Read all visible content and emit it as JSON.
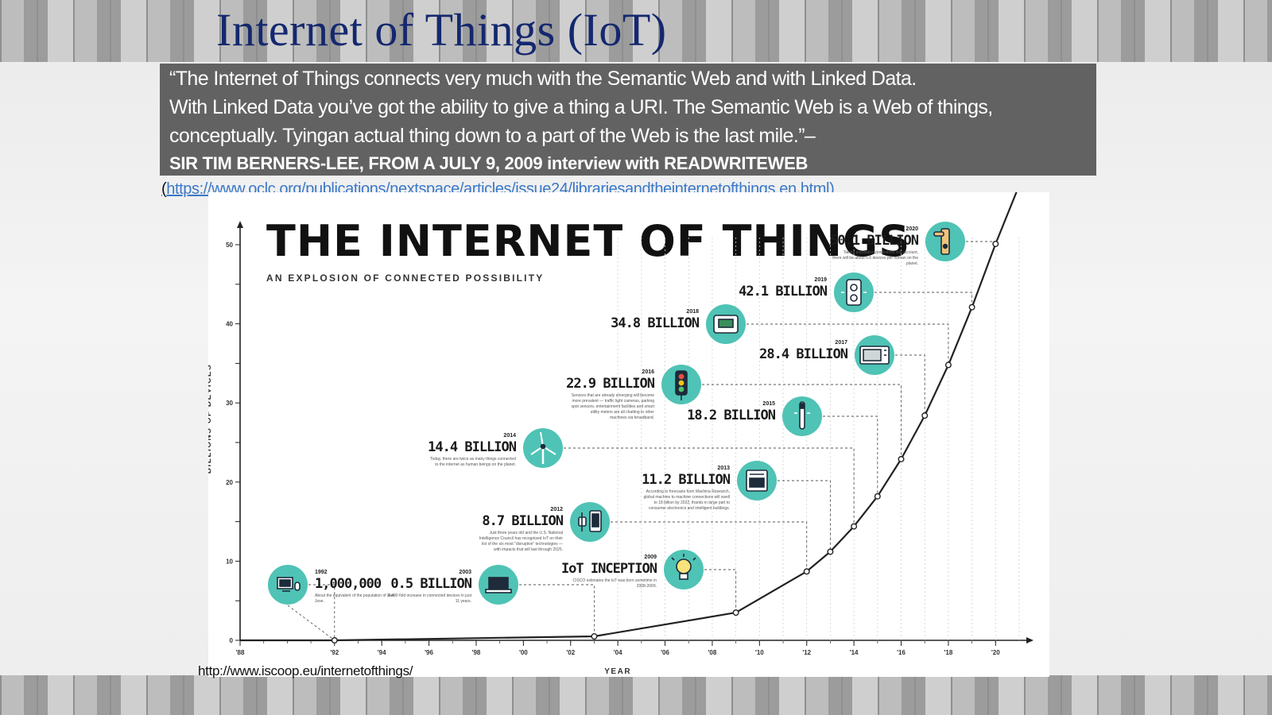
{
  "slide": {
    "title": "Internet of Things (IoT)",
    "quote_lines": [
      "“The Internet of Things connects very much with the Semantic Web and with Linked Data.",
      "With Linked Data you’ve got the ability to give a thing a URI. The Semantic Web is a Web  of things,",
      "conceptually. Tyingan actual thing down to a part of the Web is the last  mile.”–"
    ],
    "quote_attribution": "SIR TIM BERNERS-LEE, FROM A JULY 9, 2009 interview with READWRITEWEB",
    "source_open": "(",
    "source_url": "https://www.oclc.org/publications/nextspace/articles/issue24/librariesandtheinternetofthings.en.html",
    "source_close": ")",
    "credit_url": "http://www.iscoop.eu/internetofthings/"
  },
  "chart_data": {
    "type": "line",
    "title": "THE INTERNET OF THINGS",
    "subtitle": "AN EXPLOSION OF CONNECTED POSSIBILITY",
    "xlabel": "YEAR",
    "ylabel": "BILLIONS OF DEVICES",
    "xlim": [
      1988,
      2021
    ],
    "ylim": [
      0,
      50
    ],
    "x_ticks": [
      "'88",
      "'92",
      "'94",
      "'96",
      "'98",
      "'00",
      "'02",
      "'04",
      "'06",
      "'08",
      "'10",
      "'12",
      "'14",
      "'16",
      "'18",
      "'20"
    ],
    "x_tick_values": [
      1988,
      1992,
      1994,
      1996,
      1998,
      2000,
      2002,
      2004,
      2006,
      2008,
      2010,
      2012,
      2014,
      2016,
      2018,
      2020
    ],
    "y_ticks": [
      0,
      10,
      20,
      30,
      40,
      50
    ],
    "grid": false,
    "line_color": "#222222",
    "accent_color": "#4fc3b5",
    "x": [
      1988,
      1992,
      2003,
      2009,
      2012,
      2013,
      2014,
      2015,
      2016,
      2017,
      2018,
      2019,
      2020,
      2021
    ],
    "y": [
      0,
      0.001,
      0.5,
      3.5,
      8.7,
      11.2,
      14.4,
      18.2,
      22.9,
      28.4,
      34.8,
      42.1,
      50.1,
      57.5
    ],
    "annotations": [
      {
        "year": "1992",
        "x": 1992,
        "y": 0.001,
        "label": "1,000,000",
        "icon": "computer-icon",
        "note": "About the equivalent of the population of San Jose."
      },
      {
        "year": "2003",
        "x": 2003,
        "y": 0.5,
        "label": "0.5 BILLION",
        "icon": "laptop-icon",
        "note": "A 490 fold increase in connected devices in just 11 years."
      },
      {
        "year": "2009",
        "x": 2009,
        "y": 3.5,
        "label": "IoT INCEPTION",
        "icon": "lightbulb-icon",
        "note": "CISCO estimates the IoT was born sometime in 2008-2009."
      },
      {
        "year": "2012",
        "x": 2012,
        "y": 8.7,
        "label": "8.7 BILLION",
        "icon": "watch-phone-icon",
        "note": "Just three years old and the U.S. National Intelligence Council has recognized IoT on their list of the six most \"disruptive\" technologies — with impacts that will last through 2025."
      },
      {
        "year": "2013",
        "x": 2013,
        "y": 11.2,
        "label": "11.2 BILLION",
        "icon": "oven-icon",
        "note": "According to forecasts from Machina Research, global machine to machine connections will swell to 18 billion by 2022, thanks in large part to consumer electronics and intelligent buildings."
      },
      {
        "year": "2014",
        "x": 2014,
        "y": 14.4,
        "label": "14.4 BILLION",
        "icon": "wind-turbine-icon",
        "note": "Today, there are twice as many things connected to the internet as human beings on the planet."
      },
      {
        "year": "2015",
        "x": 2015,
        "y": 18.2,
        "label": "18.2 BILLION",
        "icon": "toothbrush-icon",
        "note": ""
      },
      {
        "year": "2016",
        "x": 2016,
        "y": 22.9,
        "label": "22.9 BILLION",
        "icon": "traffic-light-icon",
        "note": "Sensors that are already emerging will become more prevalent — traffic light cameras, parking spot sensors, entertainment facilities and smart utility meters are all chatting to other machines via broadband."
      },
      {
        "year": "2017",
        "x": 2017,
        "y": 28.4,
        "label": "28.4 BILLION",
        "icon": "microwave-icon",
        "note": ""
      },
      {
        "year": "2018",
        "x": 2018,
        "y": 34.8,
        "label": "34.8 BILLION",
        "icon": "thermostat-icon",
        "note": ""
      },
      {
        "year": "2019",
        "x": 2019,
        "y": 42.1,
        "label": "42.1 BILLION",
        "icon": "power-outlet-icon",
        "note": ""
      },
      {
        "year": "2020",
        "x": 2020,
        "y": 50.1,
        "label": "50.1 BILLION",
        "icon": "door-lock-icon",
        "note": "Taking population predictions into account, there will be about 6.6 devices per human on the planet."
      }
    ]
  }
}
